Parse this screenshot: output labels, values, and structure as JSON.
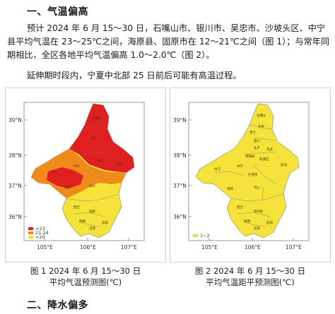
{
  "section1": {
    "title": "一、气温偏高"
  },
  "paragraph1": "预计 2024 年 6 月 15～30 日，石嘴山市、银川市、吴忠市、沙坡头区、中宁县平均气温在 23～25℃之间，海原县、固原市在 12～21℃之间（图 1）；与常年同期相比，全区各地平均气温偏高 1.0～2.0℃（图 2）。",
  "paragraph2": "延伸期时段内，宁夏中北部 25 日前后可能有高温过程。",
  "figure1": {
    "caption_line1": "图 1 2024 年 6 月 15～30 日",
    "caption_line2": "平均气温预测图(℃)",
    "lat_labels": [
      "39°N",
      "38°N",
      "37°N",
      "36°N"
    ],
    "lon_labels": [
      "105°E",
      "106°E",
      "107°E"
    ],
    "legend": [
      {
        "label": ">23",
        "color": "#e02020"
      },
      {
        "label": "21-24",
        "color": "#f08a1a"
      },
      {
        "label": "<20",
        "color": "#f5e23a"
      }
    ],
    "places": [
      "石嘴山",
      "银川",
      "吴忠",
      "中卫",
      "中宁",
      "盐池",
      "海原",
      "固原",
      "西吉",
      "隆德",
      "泾源",
      "彭阳",
      "同心"
    ]
  },
  "figure2": {
    "caption_line1": "图 2 2024 年 6 月 15～30 日",
    "caption_line2": "平均气温距平预测图(℃)",
    "lat_labels": [
      "39°N",
      "38°N",
      "37°N",
      "36°N"
    ],
    "lon_labels": [
      "105°E",
      "106°E",
      "107°E"
    ],
    "legend": [
      {
        "label": "1~2",
        "color": "#f5e23a"
      }
    ],
    "places": [
      "石嘴山",
      "平罗",
      "贺兰",
      "银川",
      "永宁",
      "灵武",
      "青铜峡",
      "利通区",
      "中卫",
      "中宁",
      "红寺堡",
      "盐池",
      "同心",
      "海原",
      "原州区",
      "西吉",
      "隆德",
      "泾源",
      "彭阳"
    ]
  },
  "section2": {
    "title": "二、降水偏多"
  }
}
